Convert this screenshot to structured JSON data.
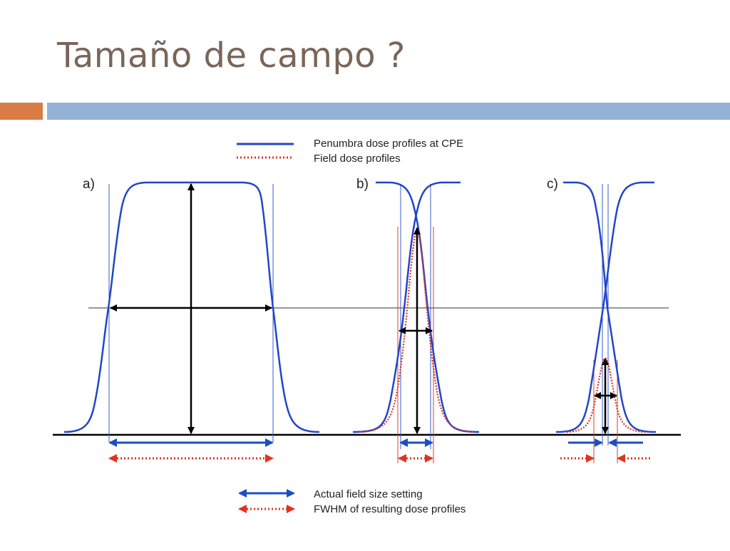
{
  "slide": {
    "title": "Tamaño de campo ?"
  },
  "figure": {
    "legend_top": [
      {
        "label": "Penumbra dose profiles at CPE",
        "style": "solid",
        "color": "#2246c8"
      },
      {
        "label": "Field dose profiles",
        "style": "dotted",
        "color": "#e03322"
      }
    ],
    "legend_bottom": [
      {
        "label": "Actual field size setting",
        "style": "solid-double-arrow",
        "color": "#1a4fc4"
      },
      {
        "label": "FWHM of resulting dose profiles",
        "style": "dotted-double-arrow",
        "color": "#e03322"
      }
    ],
    "panels": [
      {
        "label": "a)"
      },
      {
        "label": "b)"
      },
      {
        "label": "c)"
      }
    ],
    "colors": {
      "penumbra": "#2246c8",
      "field": "#e03322",
      "arrow_black": "#000000",
      "axis": "#000000",
      "guide_blue": "#3a5fc8",
      "guide_red": "#d9402e"
    }
  }
}
